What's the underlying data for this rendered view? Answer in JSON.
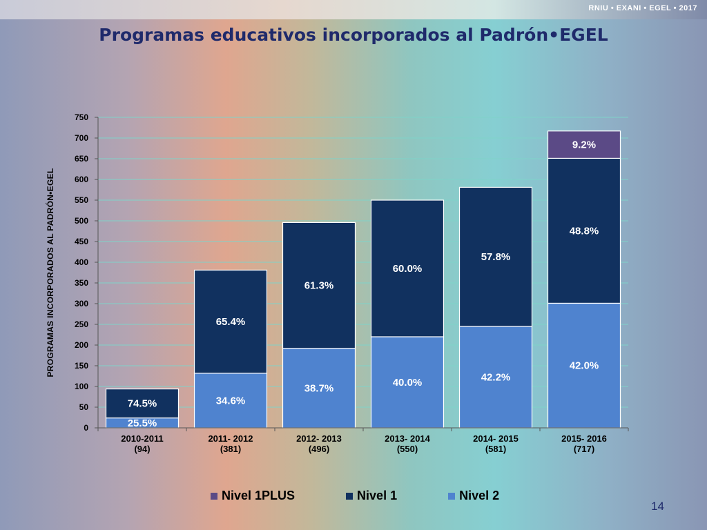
{
  "header": {
    "brand": "RNIU • EXANI • EGEL • 2017",
    "title": "Programas educativos incorporados al Padrón•EGEL"
  },
  "page_number": "14",
  "colors": {
    "nivel_1plus": "#5b4a86",
    "nivel_1": "#11315f",
    "nivel_2": "#4f83cf"
  },
  "chart_data": {
    "type": "bar",
    "stacked": true,
    "categories": [
      "2010-2011\n(94)",
      "2011- 2012\n(381)",
      "2012- 2013\n(496)",
      "2013- 2014\n(550)",
      "2014- 2015\n(581)",
      "2015- 2016\n(717)"
    ],
    "series": [
      {
        "name": "Nivel 2",
        "values": [
          24,
          132,
          192,
          220,
          245,
          301
        ],
        "labels": [
          "25.5%",
          "34.6%",
          "38.7%",
          "40.0%",
          "42.2%",
          "42.0%"
        ]
      },
      {
        "name": "Nivel 1",
        "values": [
          70,
          249,
          304,
          330,
          336,
          350
        ],
        "labels": [
          "74.5%",
          "65.4%",
          "61.3%",
          "60.0%",
          "57.8%",
          "48.8%"
        ]
      },
      {
        "name": "Nivel 1PLUS",
        "values": [
          0,
          0,
          0,
          0,
          0,
          66
        ],
        "labels": [
          "",
          "",
          "",
          "",
          "",
          "9.2%"
        ]
      }
    ],
    "ylabel": "PROGRAMAS INCORPORADOS AL PADRÓN•EGEL",
    "ylim": [
      0,
      750
    ],
    "yticks": [
      0,
      50,
      100,
      150,
      200,
      250,
      300,
      350,
      400,
      450,
      500,
      550,
      600,
      650,
      700,
      750
    ],
    "legend": {
      "placement": "bottom",
      "entries": [
        "Nivel 1PLUS",
        "Nivel 1",
        "Nivel 2"
      ]
    },
    "grid": true
  }
}
